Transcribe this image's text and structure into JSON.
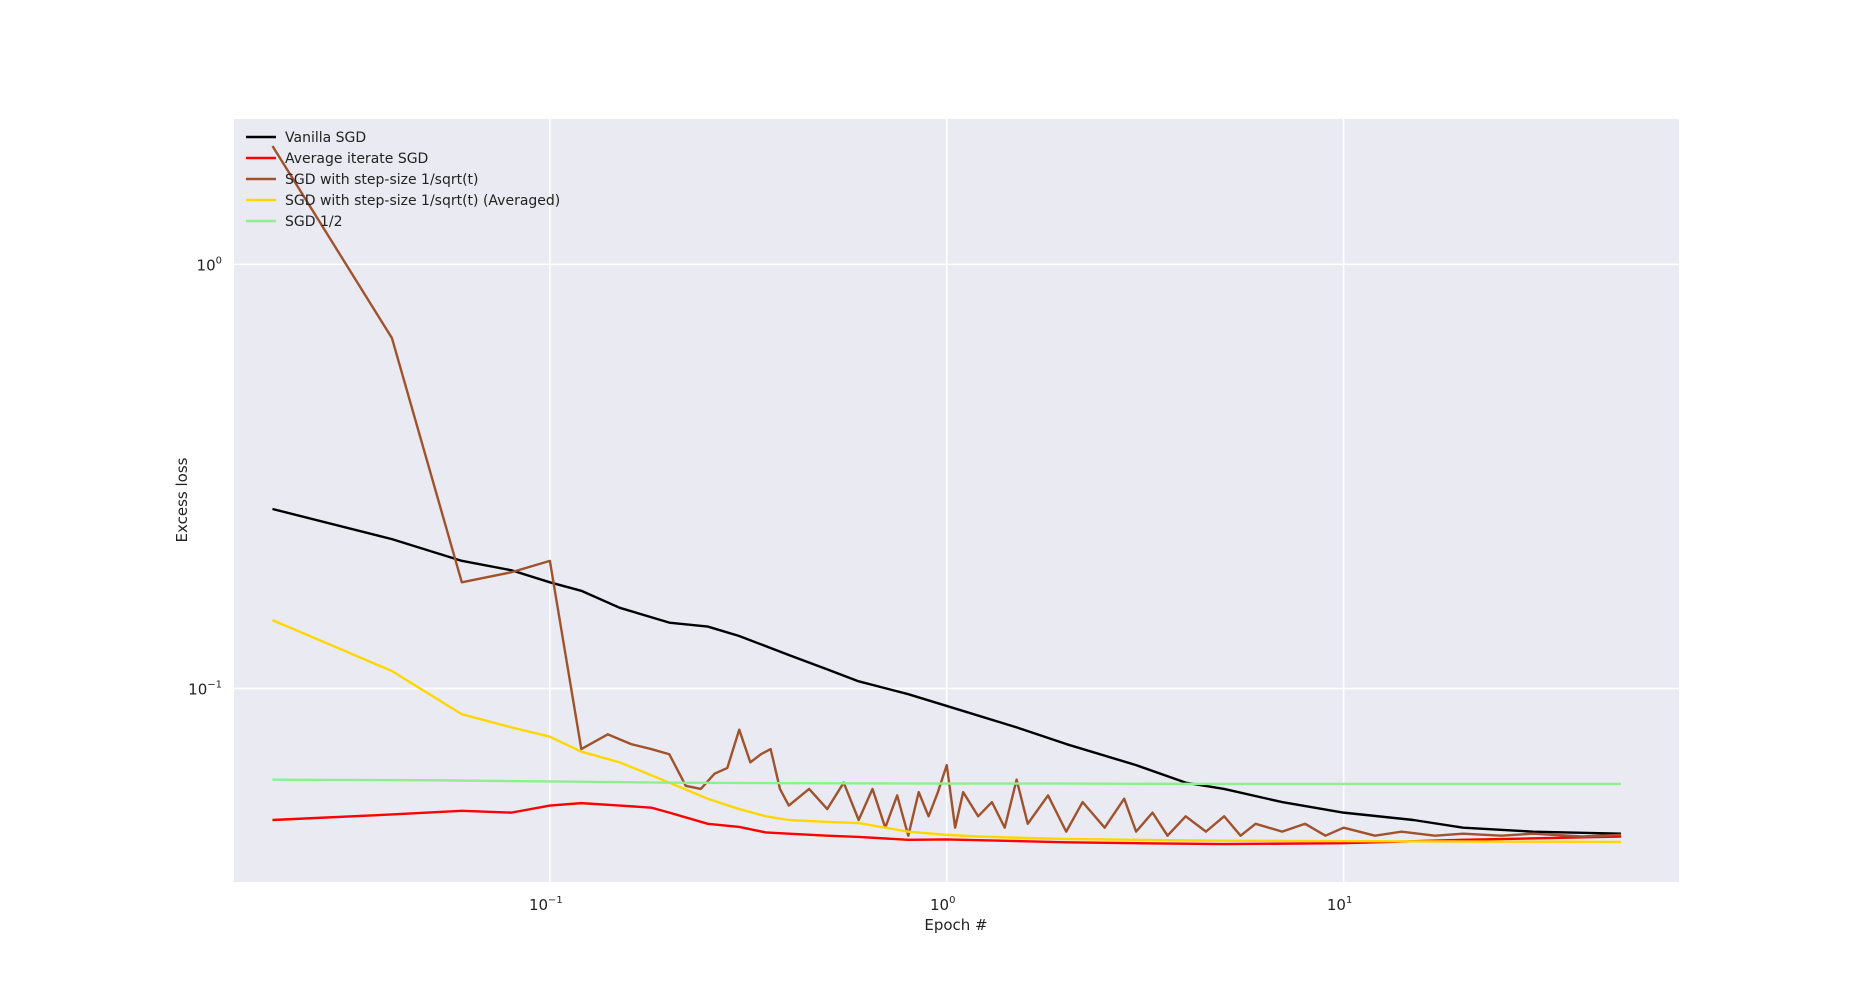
{
  "chart_data": {
    "type": "line",
    "title": "",
    "xlabel": "Epoch #",
    "ylabel": "Excess loss",
    "xscale": "log",
    "yscale": "log",
    "xlim": [
      0.016,
      70
    ],
    "ylim": [
      0.035,
      2.2
    ],
    "x_ticks": [
      {
        "value": 0.1,
        "base": "10",
        "exp": "−1"
      },
      {
        "value": 1,
        "base": "10",
        "exp": "0"
      },
      {
        "value": 10,
        "base": "10",
        "exp": "1"
      }
    ],
    "y_ticks": [
      {
        "value": 0.1,
        "base": "10",
        "exp": "−1"
      },
      {
        "value": 1,
        "base": "10",
        "exp": "0"
      }
    ],
    "grid": true,
    "legend_position": "top-left",
    "background_color": "#eaeaf2",
    "grid_color": "#ffffff",
    "series": [
      {
        "name": "Vanilla SGD",
        "color": "#000000",
        "x": [
          0.02,
          0.04,
          0.06,
          0.08,
          0.1,
          0.12,
          0.15,
          0.2,
          0.25,
          0.3,
          0.4,
          0.5,
          0.6,
          0.8,
          1.0,
          1.5,
          2.0,
          3.0,
          4.0,
          5.0,
          7.0,
          10.0,
          15.0,
          20.0,
          30.0,
          50.0
        ],
        "y": [
          0.265,
          0.225,
          0.2,
          0.19,
          0.178,
          0.17,
          0.155,
          0.143,
          0.14,
          0.133,
          0.12,
          0.111,
          0.104,
          0.097,
          0.091,
          0.081,
          0.074,
          0.066,
          0.06,
          0.058,
          0.054,
          0.051,
          0.049,
          0.047,
          0.046,
          0.0455
        ]
      },
      {
        "name": "Average iterate SGD",
        "color": "#ff0000",
        "x": [
          0.02,
          0.04,
          0.06,
          0.08,
          0.1,
          0.12,
          0.15,
          0.18,
          0.2,
          0.25,
          0.3,
          0.35,
          0.4,
          0.5,
          0.6,
          0.8,
          1.0,
          1.5,
          2.0,
          3.0,
          5.0,
          10.0,
          20.0,
          50.0
        ],
        "y": [
          0.049,
          0.0505,
          0.0515,
          0.051,
          0.053,
          0.0537,
          0.053,
          0.0524,
          0.051,
          0.048,
          0.0472,
          0.0458,
          0.0455,
          0.045,
          0.0447,
          0.044,
          0.0441,
          0.0437,
          0.0434,
          0.0432,
          0.043,
          0.0432,
          0.044,
          0.0448
        ]
      },
      {
        "name": "SGD with step-size 1/sqrt(t)",
        "color": "#a0522d",
        "x": [
          0.02,
          0.04,
          0.06,
          0.08,
          0.1,
          0.12,
          0.14,
          0.16,
          0.18,
          0.2,
          0.22,
          0.24,
          0.26,
          0.28,
          0.3,
          0.32,
          0.34,
          0.36,
          0.38,
          0.4,
          0.45,
          0.5,
          0.55,
          0.6,
          0.65,
          0.7,
          0.75,
          0.8,
          0.85,
          0.9,
          0.95,
          1.0,
          1.05,
          1.1,
          1.2,
          1.3,
          1.4,
          1.5,
          1.6,
          1.8,
          2.0,
          2.2,
          2.5,
          2.8,
          3.0,
          3.3,
          3.6,
          4.0,
          4.5,
          5.0,
          5.5,
          6.0,
          7.0,
          8.0,
          9.0,
          10.0,
          12.0,
          14.0,
          17.0,
          20.0,
          25.0,
          30.0,
          40.0,
          50.0
        ],
        "y": [
          1.9,
          0.67,
          0.178,
          0.188,
          0.2,
          0.072,
          0.078,
          0.074,
          0.072,
          0.07,
          0.059,
          0.058,
          0.063,
          0.065,
          0.08,
          0.067,
          0.07,
          0.072,
          0.058,
          0.053,
          0.058,
          0.052,
          0.06,
          0.049,
          0.058,
          0.047,
          0.056,
          0.045,
          0.057,
          0.05,
          0.057,
          0.066,
          0.047,
          0.057,
          0.05,
          0.054,
          0.047,
          0.061,
          0.048,
          0.056,
          0.046,
          0.054,
          0.047,
          0.055,
          0.046,
          0.051,
          0.045,
          0.05,
          0.046,
          0.05,
          0.045,
          0.048,
          0.046,
          0.048,
          0.045,
          0.047,
          0.045,
          0.046,
          0.045,
          0.0455,
          0.045,
          0.0455,
          0.0448,
          0.0452
        ]
      },
      {
        "name": "SGD with step-size 1/sqrt(t) (Averaged)",
        "color": "#ffd700",
        "x": [
          0.02,
          0.04,
          0.06,
          0.08,
          0.1,
          0.12,
          0.15,
          0.2,
          0.25,
          0.3,
          0.35,
          0.4,
          0.5,
          0.6,
          0.7,
          0.8,
          1.0,
          1.2,
          1.5,
          2.0,
          3.0,
          5.0,
          10.0,
          20.0,
          50.0
        ],
        "y": [
          0.145,
          0.11,
          0.087,
          0.081,
          0.077,
          0.071,
          0.067,
          0.06,
          0.055,
          0.052,
          0.05,
          0.049,
          0.0485,
          0.0482,
          0.047,
          0.046,
          0.0452,
          0.0448,
          0.0445,
          0.0442,
          0.044,
          0.0438,
          0.0437,
          0.0436,
          0.0435
        ]
      },
      {
        "name": "SGD 1/2",
        "color": "#90ee90",
        "x": [
          0.02,
          0.05,
          0.1,
          0.2,
          0.5,
          1.0,
          2.0,
          5.0,
          10.0,
          20.0,
          50.0
        ],
        "y": [
          0.061,
          0.0608,
          0.0604,
          0.06,
          0.0598,
          0.0597,
          0.0597,
          0.0596,
          0.0596,
          0.0596,
          0.0596
        ]
      }
    ]
  }
}
